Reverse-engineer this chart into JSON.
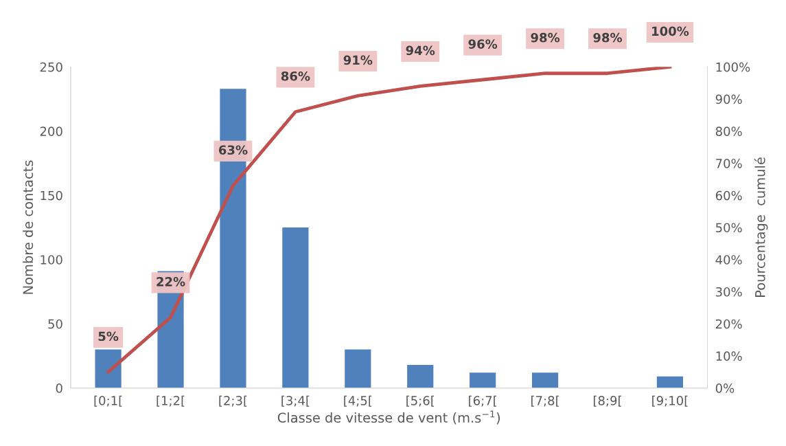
{
  "chart_data": {
    "type": "bar",
    "xlabel": "Classe de vitesse de vent (m.s$^{−1}$)",
    "ylabel": "Nombre de contacts",
    "y2label": "Pourcentage  cumulé",
    "categories": [
      "[0;1[",
      "[1;2[",
      "[2;3[",
      "[3;4[",
      "[4;5[",
      "[5;6[",
      "[6;7[",
      "[7;8[",
      "[8;9[",
      "[9;10["
    ],
    "series": [
      {
        "color": "#4f81bd",
        "values": [
          30,
          91,
          233,
          125,
          30,
          18,
          12,
          12,
          0,
          9
        ]
      },
      {
        "type": "line",
        "axis": "y2",
        "color": "#c0504d",
        "values": [
          5,
          22,
          63,
          86,
          91,
          94,
          96,
          98,
          98,
          100
        ],
        "value_labels": [
          "5%",
          "22%",
          "63%",
          "86%",
          "91%",
          "94%",
          "96%",
          "98%",
          "98%",
          "100%"
        ]
      }
    ],
    "ylim": [
      0,
      250
    ],
    "yticks": [
      0,
      50,
      100,
      150,
      200,
      250
    ],
    "y2lim": [
      0,
      100
    ],
    "y2ticks": [
      {
        "value": 0,
        "label": "0%"
      },
      {
        "value": 10,
        "label": "10%"
      },
      {
        "value": 20,
        "label": "20%"
      },
      {
        "value": 30,
        "label": "30%"
      },
      {
        "value": 40,
        "label": "40%"
      },
      {
        "value": 50,
        "label": "50%"
      },
      {
        "value": 60,
        "label": "60%"
      },
      {
        "value": 70,
        "label": "70%"
      },
      {
        "value": 80,
        "label": "80%"
      },
      {
        "value": 90,
        "label": "90%"
      },
      {
        "value": 100,
        "label": "100%"
      }
    ],
    "grid": false,
    "marker": "none",
    "line_style": "solid"
  }
}
